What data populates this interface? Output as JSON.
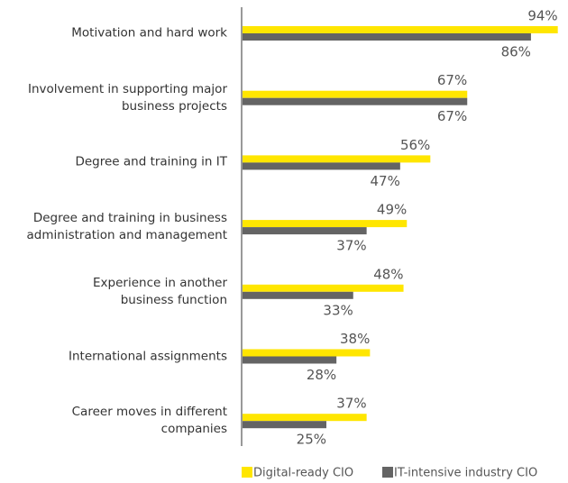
{
  "chart_data": {
    "type": "bar",
    "orientation": "horizontal",
    "categories": [
      "Motivation and hard work",
      "Involvement in supporting major\nbusiness projects",
      "Degree and training in IT",
      "Degree and training in business\nadministration and management",
      "Experience in another\nbusiness function",
      "International assignments",
      "Career moves in different\ncompanies"
    ],
    "series": [
      {
        "name": "Digital-ready CIO",
        "color": "#ffe600",
        "values": [
          94,
          67,
          56,
          49,
          48,
          38,
          37
        ],
        "value_labels": [
          "94%",
          "67%",
          "56%",
          "49%",
          "48%",
          "38%",
          "37%"
        ]
      },
      {
        "name": "IT-intensive industry CIO",
        "color": "#646464",
        "values": [
          86,
          67,
          47,
          37,
          33,
          28,
          25
        ],
        "value_labels": [
          "86%",
          "67%",
          "47%",
          "37%",
          "33%",
          "28%",
          "25%"
        ]
      }
    ],
    "legend": "bottom"
  }
}
